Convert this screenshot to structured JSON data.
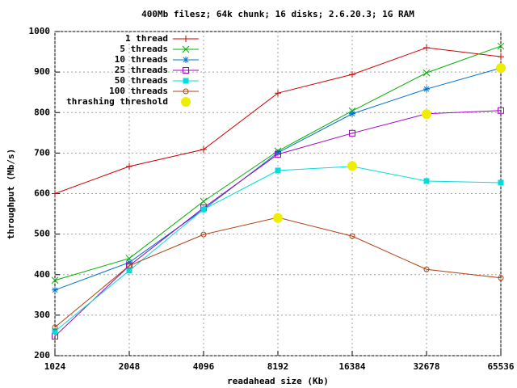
{
  "chart_data": {
    "type": "line",
    "title": "400Mb filesz; 64k chunk; 16 disks; 2.6.20.3; 1G RAM",
    "x_label": "readahead size (Kb)",
    "y_label": "throughput (Mb/s)",
    "categories": [
      "1024",
      "2048",
      "4096",
      "8192",
      "16384",
      "32678",
      "65536"
    ],
    "ylim": [
      200,
      1000
    ],
    "yticks": [
      200,
      300,
      400,
      500,
      600,
      700,
      800,
      900,
      1000
    ],
    "grid": true,
    "legend": "top-left",
    "series": [
      {
        "name": "1 thread",
        "color": "#cc0000",
        "marker": "plus",
        "line": true,
        "values": [
          600,
          667,
          709,
          848,
          894,
          960,
          938
        ]
      },
      {
        "name": "5 threads",
        "color": "#00b000",
        "marker": "cross",
        "line": true,
        "values": [
          386,
          440,
          581,
          705,
          804,
          898,
          964
        ]
      },
      {
        "name": "10 threads",
        "color": "#0070d0",
        "marker": "star",
        "line": true,
        "values": [
          362,
          430,
          561,
          701,
          797,
          858,
          910
        ]
      },
      {
        "name": "25 threads",
        "color": "#a000c0",
        "marker": "square-open",
        "line": true,
        "values": [
          248,
          422,
          565,
          697,
          749,
          797,
          805
        ]
      },
      {
        "name": "50 threads",
        "color": "#00dddd",
        "marker": "square",
        "line": true,
        "values": [
          260,
          410,
          561,
          657,
          667,
          631,
          627
        ]
      },
      {
        "name": "100 threads",
        "color": "#b04010",
        "marker": "circle-open",
        "line": true,
        "values": [
          270,
          422,
          499,
          541,
          495,
          413,
          392
        ]
      },
      {
        "name": "thrashing threshold",
        "color": "#eeee00",
        "marker": "circle",
        "line": false,
        "values": [
          null,
          null,
          null,
          540,
          668,
          796,
          910
        ]
      }
    ]
  }
}
